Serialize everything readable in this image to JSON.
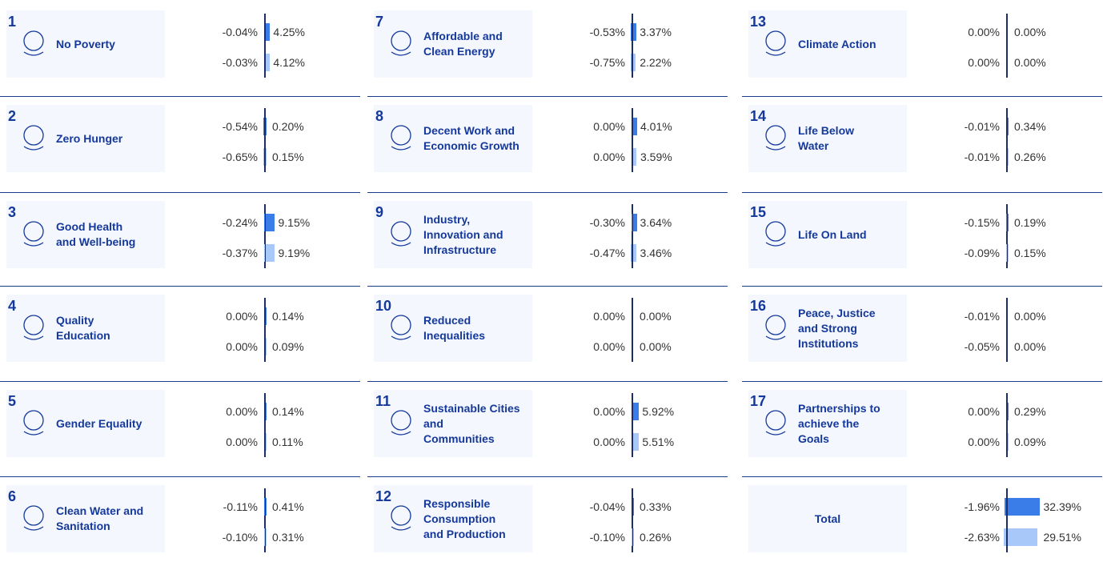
{
  "cards": [
    {
      "number": 1,
      "title_lines": [
        "No Poverty"
      ],
      "values": [
        [
          -0.04,
          4.25
        ],
        [
          -0.03,
          4.12
        ]
      ],
      "value_labels": [
        [
          "-0.04%",
          "4.25%"
        ],
        [
          "-0.03%",
          "4.12%"
        ]
      ]
    },
    {
      "number": 2,
      "title_lines": [
        "Zero Hunger"
      ],
      "values": [
        [
          -0.54,
          0.2
        ],
        [
          -0.65,
          0.15
        ]
      ],
      "value_labels": [
        [
          "-0.54%",
          "0.20%"
        ],
        [
          "-0.65%",
          "0.15%"
        ]
      ]
    },
    {
      "number": 3,
      "title_lines": [
        "Good Health",
        "and Well-being"
      ],
      "values": [
        [
          -0.24,
          9.15
        ],
        [
          -0.37,
          9.19
        ]
      ],
      "value_labels": [
        [
          "-0.24%",
          "9.15%"
        ],
        [
          "-0.37%",
          "9.19%"
        ]
      ]
    },
    {
      "number": 4,
      "title_lines": [
        "Quality",
        "Education"
      ],
      "values": [
        [
          0.0,
          0.14
        ],
        [
          0.0,
          0.09
        ]
      ],
      "value_labels": [
        [
          "0.00%",
          "0.14%"
        ],
        [
          "0.00%",
          "0.09%"
        ]
      ]
    },
    {
      "number": 5,
      "title_lines": [
        "Gender Equality"
      ],
      "values": [
        [
          0.0,
          0.14
        ],
        [
          0.0,
          0.11
        ]
      ],
      "value_labels": [
        [
          "0.00%",
          "0.14%"
        ],
        [
          "0.00%",
          "0.11%"
        ]
      ]
    },
    {
      "number": 6,
      "title_lines": [
        "Clean Water and",
        "Sanitation"
      ],
      "values": [
        [
          -0.11,
          0.41
        ],
        [
          -0.1,
          0.31
        ]
      ],
      "value_labels": [
        [
          "-0.11%",
          "0.41%"
        ],
        [
          "-0.10%",
          "0.31%"
        ]
      ]
    },
    {
      "number": 7,
      "title_lines": [
        "Affordable and",
        "Clean Energy"
      ],
      "values": [
        [
          -0.53,
          3.37
        ],
        [
          -0.75,
          2.22
        ]
      ],
      "value_labels": [
        [
          "-0.53%",
          "3.37%"
        ],
        [
          "-0.75%",
          "2.22%"
        ]
      ]
    },
    {
      "number": 8,
      "title_lines": [
        "Decent Work and",
        "Economic Growth"
      ],
      "values": [
        [
          0.0,
          4.01
        ],
        [
          0.0,
          3.59
        ]
      ],
      "value_labels": [
        [
          "0.00%",
          "4.01%"
        ],
        [
          "0.00%",
          "3.59%"
        ]
      ]
    },
    {
      "number": 9,
      "title_lines": [
        "Industry,",
        "Innovation and",
        "Infrastructure"
      ],
      "values": [
        [
          -0.3,
          3.64
        ],
        [
          -0.47,
          3.46
        ]
      ],
      "value_labels": [
        [
          "-0.30%",
          "3.64%"
        ],
        [
          "-0.47%",
          "3.46%"
        ]
      ]
    },
    {
      "number": 10,
      "title_lines": [
        "Reduced",
        "Inequalities"
      ],
      "values": [
        [
          0.0,
          0.0
        ],
        [
          0.0,
          0.0
        ]
      ],
      "value_labels": [
        [
          "0.00%",
          "0.00%"
        ],
        [
          "0.00%",
          "0.00%"
        ]
      ]
    },
    {
      "number": 11,
      "title_lines": [
        "Sustainable Cities",
        "and",
        "Communities"
      ],
      "values": [
        [
          0.0,
          5.92
        ],
        [
          0.0,
          5.51
        ]
      ],
      "value_labels": [
        [
          "0.00%",
          "5.92%"
        ],
        [
          "0.00%",
          "5.51%"
        ]
      ]
    },
    {
      "number": 12,
      "title_lines": [
        "Responsible",
        "Consumption",
        "and Production"
      ],
      "values": [
        [
          -0.04,
          0.33
        ],
        [
          -0.1,
          0.26
        ]
      ],
      "value_labels": [
        [
          "-0.04%",
          "0.33%"
        ],
        [
          "-0.10%",
          "0.26%"
        ]
      ]
    },
    {
      "number": 13,
      "title_lines": [
        "Climate Action"
      ],
      "values": [
        [
          0.0,
          0.0
        ],
        [
          0.0,
          0.0
        ]
      ],
      "value_labels": [
        [
          "0.00%",
          "0.00%"
        ],
        [
          "0.00%",
          "0.00%"
        ]
      ]
    },
    {
      "number": 14,
      "title_lines": [
        "Life Below",
        "Water"
      ],
      "values": [
        [
          -0.01,
          0.34
        ],
        [
          -0.01,
          0.26
        ]
      ],
      "value_labels": [
        [
          "-0.01%",
          "0.34%"
        ],
        [
          "-0.01%",
          "0.26%"
        ]
      ]
    },
    {
      "number": 15,
      "title_lines": [
        "Life On Land"
      ],
      "values": [
        [
          -0.15,
          0.19
        ],
        [
          -0.09,
          0.15
        ]
      ],
      "value_labels": [
        [
          "-0.15%",
          "0.19%"
        ],
        [
          "-0.09%",
          "0.15%"
        ]
      ]
    },
    {
      "number": 16,
      "title_lines": [
        "Peace, Justice",
        "and Strong",
        "Institutions"
      ],
      "values": [
        [
          -0.01,
          0.0
        ],
        [
          -0.05,
          0.0
        ]
      ],
      "value_labels": [
        [
          "-0.01%",
          "0.00%"
        ],
        [
          "-0.05%",
          "0.00%"
        ]
      ]
    },
    {
      "number": 17,
      "title_lines": [
        "Partnerships to",
        "achieve the",
        "Goals"
      ],
      "values": [
        [
          0.0,
          0.29
        ],
        [
          0.0,
          0.09
        ]
      ],
      "value_labels": [
        [
          "0.00%",
          "0.29%"
        ],
        [
          "0.00%",
          "0.09%"
        ]
      ]
    },
    {
      "title_lines": [
        "Total"
      ],
      "values": [
        [
          -1.96,
          32.39
        ],
        [
          -2.63,
          29.51
        ]
      ],
      "value_labels": [
        [
          "-1.96%",
          "32.39%"
        ],
        [
          "-2.63%",
          "29.51%"
        ]
      ]
    }
  ],
  "colors": [
    "#3b7de8",
    "#a7c8f8"
  ]
}
